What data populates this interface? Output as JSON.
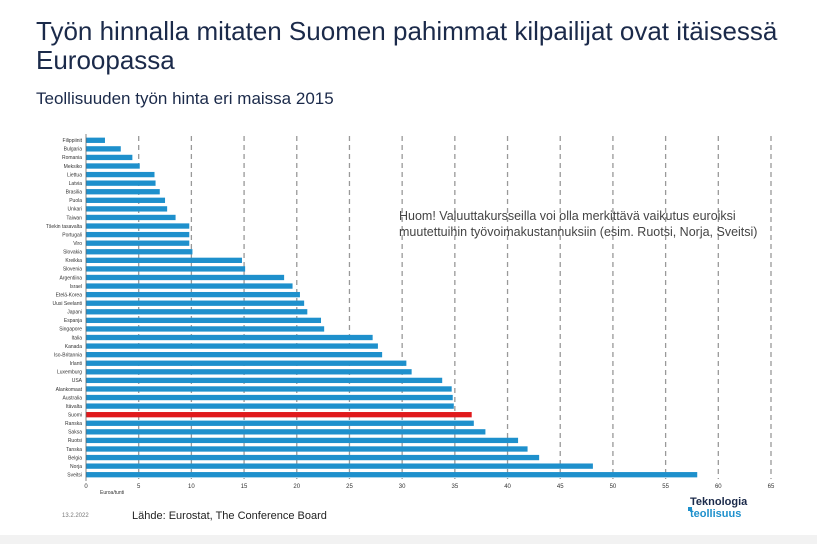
{
  "header": {
    "title": "Työn hinnalla mitaten Suomen pahimmat kilpailijat ovat itäisessä Euroopassa",
    "subtitle": "Teollisuuden työn hinta eri maissa 2015"
  },
  "note": "Huom! Valuuttakursseilla voi olla merkittävä vaikutus euroiksi muutettuihin työvoimakustannuksiin (esim. Ruotsi, Norja, Sveitsi)",
  "footer": {
    "date": "13.2.2022",
    "source": "Lähde: Eurostat, The Conference Board",
    "logo_line1": "Teknologia",
    "logo_line2": "teollisuus"
  },
  "colors": {
    "bar": "#1e90cc",
    "highlight": "#e0191b",
    "grid": "#999999",
    "text": "#1b2a4a"
  },
  "chart_data": {
    "type": "bar",
    "orientation": "horizontal",
    "xlabel": "Euroa/tunti",
    "xlim": [
      0,
      65
    ],
    "xticks": [
      0,
      5,
      10,
      15,
      20,
      25,
      30,
      35,
      40,
      45,
      50,
      55,
      60,
      65
    ],
    "highlight": "Suomi",
    "categories": [
      "Filippiinit",
      "Bulgaria",
      "Romania",
      "Meksiko",
      "Liettua",
      "Latvia",
      "Brasilia",
      "Puola",
      "Unkari",
      "Taiwan",
      "Tšekin tasavalta",
      "Portugali",
      "Viro",
      "Slovakia",
      "Kreikka",
      "Slovenia",
      "Argentiina",
      "Israel",
      "Etelä-Korea",
      "Uusi Seelanti",
      "Japani",
      "Espanja",
      "Singapore",
      "Italia",
      "Kanada",
      "Iso-Britannia",
      "Irlanti",
      "Luxemburg",
      "USA",
      "Alankomaat",
      "Australia",
      "Itävalta",
      "Suomi",
      "Ranska",
      "Saksa",
      "Ruotsi",
      "Tanska",
      "Belgia",
      "Norja",
      "Sveitsi"
    ],
    "values": [
      1.8,
      3.3,
      4.4,
      5.1,
      6.5,
      6.6,
      7.0,
      7.5,
      7.7,
      8.5,
      9.8,
      9.8,
      9.8,
      10.1,
      14.8,
      15.1,
      18.8,
      19.6,
      20.3,
      20.7,
      21.0,
      22.3,
      22.6,
      27.2,
      27.7,
      28.1,
      30.4,
      30.9,
      33.8,
      34.7,
      34.8,
      34.9,
      36.6,
      36.8,
      37.9,
      41.0,
      41.9,
      43.0,
      48.1,
      58.0
    ]
  }
}
